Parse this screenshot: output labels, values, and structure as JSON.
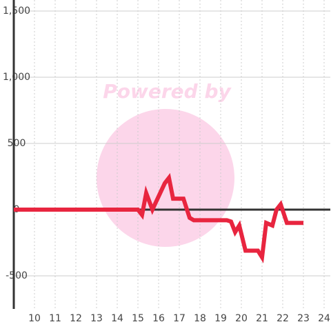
{
  "chart_data": {
    "type": "line",
    "watermark": "Powered by",
    "x": [
      9,
      15,
      15.2,
      15.4,
      15.7,
      16.0,
      16.3,
      16.5,
      16.7,
      17.2,
      17.5,
      17.7,
      19.3,
      19.5,
      19.7,
      19.9,
      20.2,
      20.8,
      21.0,
      21.2,
      21.5,
      21.7,
      21.9,
      22.2,
      23
    ],
    "values": [
      0,
      0,
      -40,
      125,
      0,
      100,
      200,
      240,
      83,
      83,
      -62,
      -80,
      -80,
      -90,
      -170,
      -120,
      -310,
      -310,
      -360,
      -100,
      -120,
      0,
      40,
      -100,
      -100
    ],
    "color": "#e8253f",
    "xlim": [
      9,
      24.3
    ],
    "xticks": [
      10,
      11,
      12,
      13,
      14,
      15,
      16,
      17,
      18,
      19,
      20,
      21,
      22,
      23,
      24
    ],
    "ylim": [
      -750,
      1500
    ],
    "yticks": [
      {
        "value": 1500,
        "label": "1,500"
      },
      {
        "value": 1000,
        "label": "1,000"
      },
      500,
      0,
      -500
    ],
    "grid": true
  }
}
